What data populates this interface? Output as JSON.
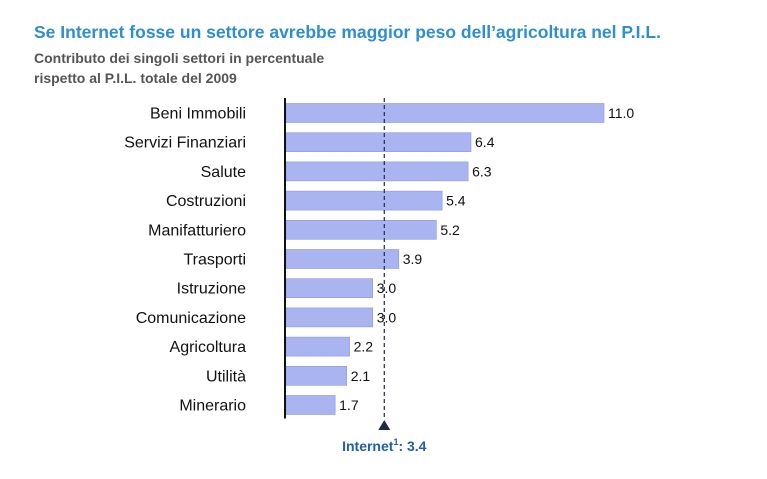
{
  "title": "Se Internet fosse un settore avrebbe maggior peso dell’agricoltura nel P.I.L.",
  "subtitle_line1": "Contributo dei singoli settori in percentuale",
  "subtitle_line2": "rispetto al P.I.L. totale del 2009",
  "colors": {
    "title": "#2d8fd0",
    "bar_fill": "#a9b4f0",
    "bar_stroke": "#8a98e2",
    "reference": "#1f2a4a",
    "reference_label": "#1f5fa6"
  },
  "chart_data": {
    "type": "bar",
    "orientation": "horizontal",
    "categories": [
      "Beni Immobili",
      "Servizi Finanziari",
      "Salute",
      "Costruzioni",
      "Manifatturiero",
      "Trasporti",
      "Istruzione",
      "Comunicazione",
      "Agricoltura",
      "Utilità",
      "Minerario"
    ],
    "values": [
      11.0,
      6.4,
      6.3,
      5.4,
      5.2,
      3.9,
      3.0,
      3.0,
      2.2,
      2.1,
      1.7
    ],
    "value_labels": [
      "11.0",
      "6.4",
      "6.3",
      "5.4",
      "5.2",
      "3.9",
      "3.0",
      "3.0",
      "2.2",
      "2.1",
      "1.7"
    ],
    "xlim": [
      0,
      11.0
    ],
    "grid": false,
    "reference_line": {
      "value": 3.4,
      "label_name": "Internet",
      "label_sup": "1",
      "label_value": ": 3.4",
      "style": "dashed"
    }
  }
}
